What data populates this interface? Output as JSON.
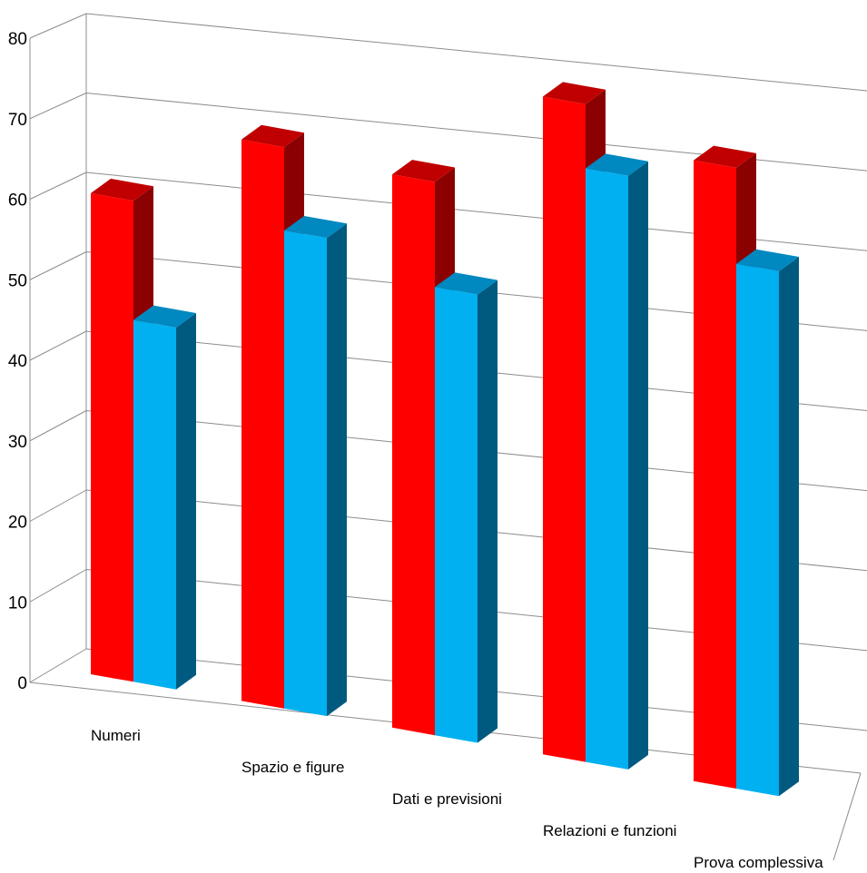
{
  "chart_data": {
    "type": "bar",
    "title": "",
    "xlabel": "",
    "ylabel": "",
    "ylim": [
      0,
      80
    ],
    "yticks": [
      0,
      10,
      20,
      30,
      40,
      50,
      60,
      70,
      80
    ],
    "grid": true,
    "legend": "none",
    "categories": [
      "Numeri",
      "Spazio e figure",
      "Dati e previsioni",
      "Relazioni e funzioni",
      "Prova complessiva"
    ],
    "series": [
      {
        "color": "#ff0000",
        "top_color": "#c00000",
        "side_color": "#8b0000",
        "values": [
          62,
          69,
          65,
          74,
          67
        ]
      },
      {
        "color": "#00b0f0",
        "top_color": "#0088c0",
        "side_color": "#005a80",
        "values": [
          46,
          58,
          52,
          66,
          56
        ]
      }
    ]
  }
}
